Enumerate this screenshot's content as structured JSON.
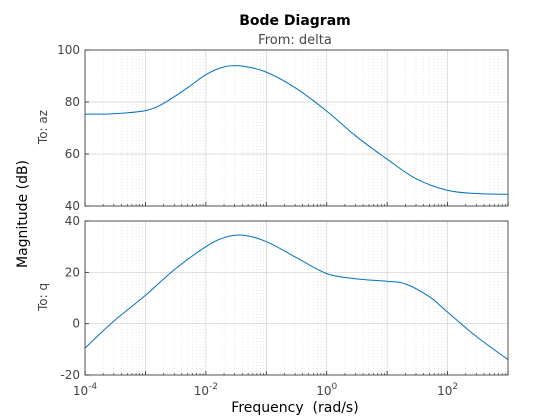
{
  "chart_data": {
    "type": "line",
    "title": "Bode Diagram",
    "subtitle": "From: delta",
    "xlabel": "Frequency  (rad/s)",
    "ylabel": "Magnitude (dB)",
    "xscale": "log",
    "xlim": [
      0.0001,
      1000
    ],
    "x_tick_labels": [
      {
        "base": "10",
        "exp": "-4"
      },
      {
        "base": "10",
        "exp": "-2"
      },
      {
        "base": "10",
        "exp": "0"
      },
      {
        "base": "10",
        "exp": "2"
      }
    ],
    "grid": true,
    "color": "#0072bd",
    "panels": [
      {
        "name": "To: az",
        "ylim": [
          40,
          100
        ],
        "y_ticks": [
          "40",
          "60",
          "80",
          "100"
        ],
        "series": [
          {
            "x": [
              0.0001,
              0.0003,
              0.001,
              0.002,
              0.005,
              0.01,
              0.02,
              0.04,
              0.1,
              0.3,
              1,
              3,
              10,
              30,
              100,
              300,
              1000
            ],
            "values": [
              75.3,
              75.5,
              76.7,
              79.5,
              85.5,
              90.5,
              93.5,
              93.8,
              91.5,
              85.5,
              76.5,
              67,
              58,
              50.5,
              46,
              44.8,
              44.5
            ]
          }
        ]
      },
      {
        "name": "To: q",
        "ylim": [
          -20,
          40
        ],
        "y_ticks": [
          "-20",
          "0",
          "20",
          "40"
        ],
        "series": [
          {
            "x": [
              0.0001,
              0.0003,
              0.001,
              0.003,
              0.01,
              0.02,
              0.04,
              0.1,
              0.3,
              1,
              3,
              10,
              20,
              50,
              100,
              300,
              1000
            ],
            "values": [
              -9.5,
              1,
              11,
              21,
              30,
              33.5,
              34.5,
              32,
              26,
              19.5,
              17.5,
              16.5,
              15.5,
              10.5,
              4.5,
              -5,
              -14
            ]
          }
        ]
      }
    ]
  }
}
